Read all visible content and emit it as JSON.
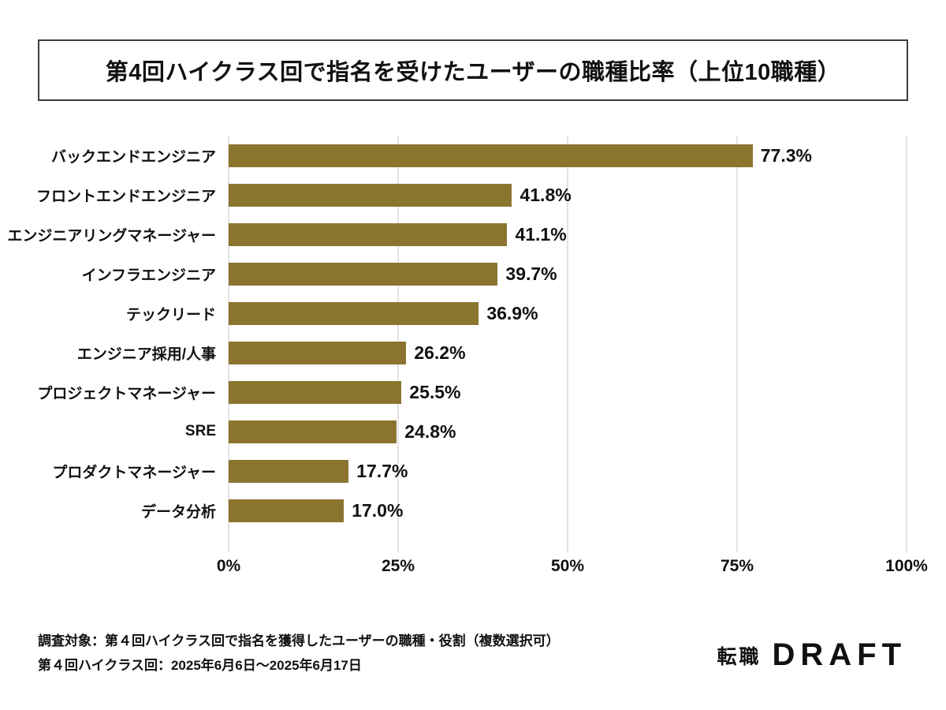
{
  "title": "第4回ハイクラス回で指名を受けたユーザーの職種比率（上位10職種）",
  "chart_data": {
    "type": "bar",
    "orientation": "horizontal",
    "title": "第4回ハイクラス回で指名を受けたユーザーの職種比率（上位10職種）",
    "categories": [
      "バックエンドエンジニア",
      "フロントエンドエンジニア",
      "エンジニアリングマネージャー",
      "インフラエンジニア",
      "テックリード",
      "エンジニア採用/人事",
      "プロジェクトマネージャー",
      "SRE",
      "プロダクトマネージャー",
      "データ分析"
    ],
    "values": [
      77.3,
      41.8,
      41.1,
      39.7,
      36.9,
      26.2,
      25.5,
      24.8,
      17.7,
      17.0
    ],
    "value_suffix": "%",
    "xlim": [
      0,
      100
    ],
    "x_ticks": [
      "0%",
      "25%",
      "50%",
      "75%",
      "100%"
    ],
    "xlabel": "",
    "ylabel": "",
    "grid": "vertical",
    "legend": "none",
    "bar_color": "#8B752E",
    "gridline_color": "#E3E3E3"
  },
  "footer": {
    "line1": "調査対象：第４回ハイクラス回で指名を獲得したユーザーの職種・役割（複数選択可）",
    "line2": "第４回ハイクラス回：2025年6月6日～2025年6月17日"
  },
  "logo": {
    "prefix": "転職",
    "brand": "DRAFT"
  }
}
